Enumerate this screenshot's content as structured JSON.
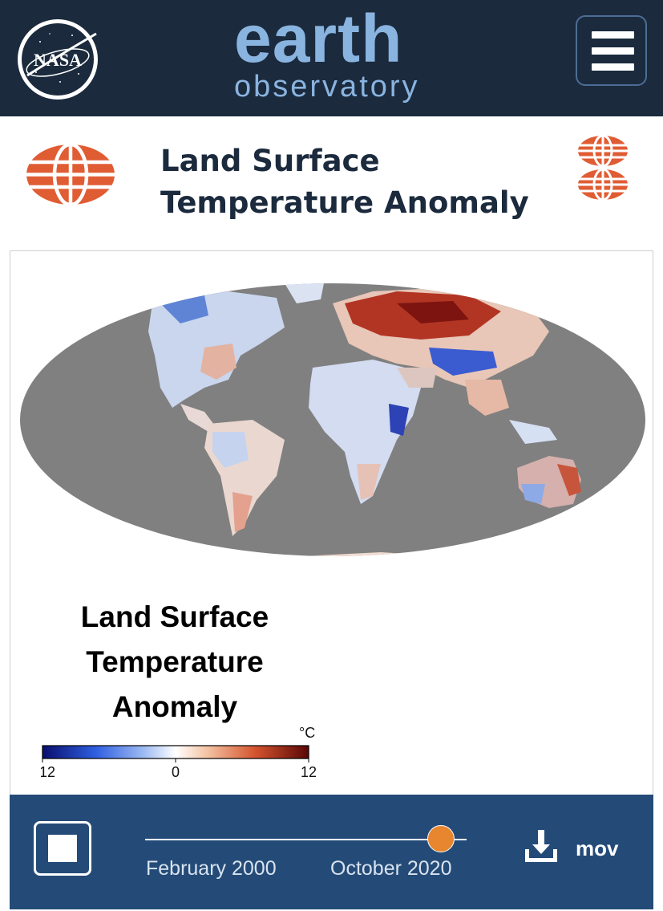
{
  "header": {
    "nasa_logo_text": "NASA",
    "logo_line1": "earth",
    "logo_line2": "observatory",
    "menu_icon": "hamburger-icon"
  },
  "page": {
    "title": "Land Surface Temperature Anomaly",
    "title_icon": "globe-icon",
    "switch_icon": "stacked-globes-icon"
  },
  "image": {
    "title": "Land Surface Temperature Anomaly",
    "legend": {
      "unit": "°C",
      "min_label": "-12",
      "mid_label": "0",
      "max_label": "12",
      "colors": [
        "#0a0e6e",
        "#2f5fe0",
        "#9dbaf2",
        "#ffffff",
        "#f4c2a2",
        "#d4532e",
        "#5a0606"
      ]
    }
  },
  "player": {
    "stop_icon": "stop-icon",
    "start_label": "February 2000",
    "end_label": "October 2020",
    "position_fraction": 0.92,
    "download_icon": "download-icon",
    "download_label": "mov"
  },
  "colors": {
    "header_bg": "#1b2a3d",
    "accent_orange": "#e05c33",
    "control_bar": "#244b78",
    "slider_thumb": "#e7862f",
    "ocean": "#808080"
  }
}
